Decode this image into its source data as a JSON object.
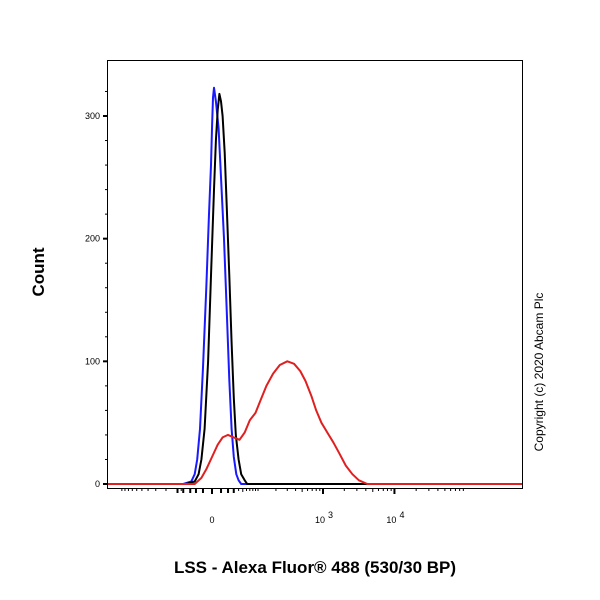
{
  "chart_data": {
    "type": "line",
    "title": "",
    "xlabel": "LSS - Alexa Fluor® 488 (530/30 BP)",
    "ylabel": "Count",
    "x_scale": "biexponential",
    "x_ticks": [
      {
        "value": 0,
        "label": "0",
        "exp": ""
      },
      {
        "value": 1000,
        "label": "10",
        "exp": "3"
      },
      {
        "value": 10000,
        "label": "10",
        "exp": "4"
      }
    ],
    "y_ticks": [
      0,
      100,
      200,
      300
    ],
    "ylim": [
      0,
      350
    ],
    "grid": false,
    "annotation": "Copyright (c) 2020 Abcam Plc",
    "colors": {
      "blue": "#1a1aff",
      "black": "#000000",
      "red": "#e02020"
    },
    "series": [
      {
        "color": "#1a1aff",
        "values": [
          [
            -45,
            0
          ],
          [
            -28,
            2
          ],
          [
            -22,
            8
          ],
          [
            -18,
            20
          ],
          [
            -14,
            45
          ],
          [
            -10,
            95
          ],
          [
            -6,
            160
          ],
          [
            -3,
            220
          ],
          [
            -1,
            260
          ],
          [
            0,
            290
          ],
          [
            1,
            315
          ],
          [
            2,
            323
          ],
          [
            4,
            312
          ],
          [
            7,
            290
          ],
          [
            10,
            250
          ],
          [
            14,
            200
          ],
          [
            18,
            140
          ],
          [
            22,
            85
          ],
          [
            26,
            45
          ],
          [
            30,
            22
          ],
          [
            35,
            8
          ],
          [
            40,
            3
          ],
          [
            46,
            0
          ]
        ]
      },
      {
        "color": "#000000",
        "values": [
          [
            -40,
            0
          ],
          [
            -22,
            2
          ],
          [
            -16,
            8
          ],
          [
            -12,
            20
          ],
          [
            -8,
            45
          ],
          [
            -4,
            100
          ],
          [
            -1,
            170
          ],
          [
            2,
            240
          ],
          [
            4,
            280
          ],
          [
            6,
            305
          ],
          [
            8,
            318
          ],
          [
            10,
            312
          ],
          [
            12,
            300
          ],
          [
            15,
            270
          ],
          [
            18,
            225
          ],
          [
            22,
            170
          ],
          [
            26,
            115
          ],
          [
            30,
            70
          ],
          [
            34,
            40
          ],
          [
            40,
            20
          ],
          [
            46,
            8
          ],
          [
            55,
            3
          ],
          [
            62,
            0
          ]
        ]
      },
      {
        "color": "#e02020",
        "values": [
          [
            -22,
            0
          ],
          [
            -12,
            5
          ],
          [
            -6,
            12
          ],
          [
            0,
            22
          ],
          [
            6,
            32
          ],
          [
            12,
            38
          ],
          [
            20,
            40
          ],
          [
            30,
            38
          ],
          [
            42,
            36
          ],
          [
            55,
            42
          ],
          [
            70,
            52
          ],
          [
            90,
            58
          ],
          [
            110,
            68
          ],
          [
            140,
            80
          ],
          [
            180,
            90
          ],
          [
            230,
            97
          ],
          [
            300,
            100
          ],
          [
            380,
            98
          ],
          [
            470,
            92
          ],
          [
            560,
            84
          ],
          [
            680,
            72
          ],
          [
            800,
            60
          ],
          [
            950,
            50
          ],
          [
            1150,
            42
          ],
          [
            1400,
            34
          ],
          [
            1700,
            25
          ],
          [
            2100,
            15
          ],
          [
            2600,
            8
          ],
          [
            3200,
            3
          ],
          [
            4200,
            0
          ]
        ]
      }
    ]
  }
}
